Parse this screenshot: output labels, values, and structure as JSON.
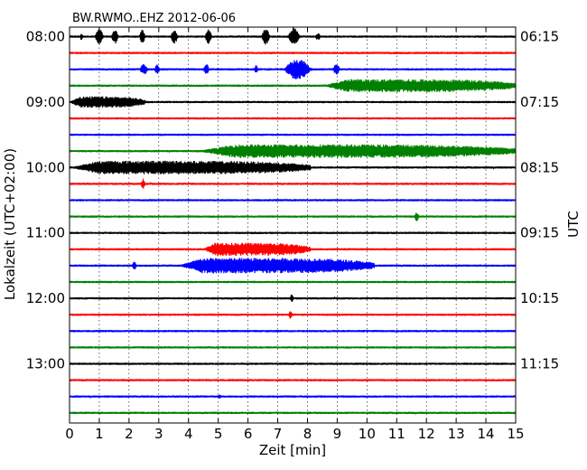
{
  "chart_data": {
    "type": "line",
    "title": "BW.RWMO..EHZ 2012-06-06",
    "xlabel": "Zeit  [min]",
    "ylabel_left": "Lokalzeit (UTC+02:00)",
    "ylabel_right": "UTC",
    "xlim": [
      0,
      15
    ],
    "xticks": [
      0,
      1,
      2,
      3,
      4,
      5,
      6,
      7,
      8,
      9,
      10,
      11,
      12,
      13,
      14,
      15
    ],
    "x_grid": "dotted",
    "trace_interval_min": 15,
    "trace_count": 24,
    "colors": [
      "#000000",
      "#ff0000",
      "#0000ff",
      "#008000"
    ],
    "left_ticks": [
      {
        "trace": 0,
        "label": "08:00"
      },
      {
        "trace": 4,
        "label": "09:00"
      },
      {
        "trace": 8,
        "label": "10:00"
      },
      {
        "trace": 12,
        "label": "11:00"
      },
      {
        "trace": 16,
        "label": "12:00"
      },
      {
        "trace": 20,
        "label": "13:00"
      }
    ],
    "right_ticks": [
      {
        "trace": 0,
        "label": "06:15"
      },
      {
        "trace": 4,
        "label": "07:15"
      },
      {
        "trace": 8,
        "label": "08:15"
      },
      {
        "trace": 12,
        "label": "09:15"
      },
      {
        "trace": 16,
        "label": "10:15"
      },
      {
        "trace": 20,
        "label": "11:15"
      }
    ],
    "events": [
      {
        "trace": 0,
        "start": 0.35,
        "end": 0.45,
        "amplitude": 0.22
      },
      {
        "trace": 0,
        "start": 0.85,
        "end": 1.15,
        "amplitude": 0.5
      },
      {
        "trace": 0,
        "start": 1.4,
        "end": 1.65,
        "amplitude": 0.45
      },
      {
        "trace": 0,
        "start": 2.35,
        "end": 2.55,
        "amplitude": 0.45
      },
      {
        "trace": 0,
        "start": 3.4,
        "end": 3.65,
        "amplitude": 0.45
      },
      {
        "trace": 0,
        "start": 4.55,
        "end": 4.8,
        "amplitude": 0.45
      },
      {
        "trace": 0,
        "start": 6.45,
        "end": 6.75,
        "amplitude": 0.5
      },
      {
        "trace": 0,
        "start": 7.35,
        "end": 7.75,
        "amplitude": 0.6
      },
      {
        "trace": 0,
        "start": 8.25,
        "end": 8.45,
        "amplitude": 0.25
      },
      {
        "trace": 2,
        "start": 2.35,
        "end": 2.65,
        "amplitude": 0.35
      },
      {
        "trace": 2,
        "start": 2.85,
        "end": 3.05,
        "amplitude": 0.3
      },
      {
        "trace": 2,
        "start": 4.5,
        "end": 4.7,
        "amplitude": 0.35
      },
      {
        "trace": 2,
        "start": 6.2,
        "end": 6.35,
        "amplitude": 0.25
      },
      {
        "trace": 2,
        "start": 7.2,
        "end": 8.15,
        "amplitude": 0.65
      },
      {
        "trace": 2,
        "start": 8.85,
        "end": 9.1,
        "amplitude": 0.35
      },
      {
        "trace": 3,
        "start": 8.5,
        "end": 15.0,
        "amplitude": 0.4
      },
      {
        "trace": 4,
        "start": 0.0,
        "end": 2.55,
        "amplitude": 0.35
      },
      {
        "trace": 7,
        "start": 4.25,
        "end": 15.0,
        "amplitude": 0.42
      },
      {
        "trace": 8,
        "start": 0.0,
        "end": 8.1,
        "amplitude": 0.42
      },
      {
        "trace": 9,
        "start": 2.4,
        "end": 2.55,
        "amplitude": 0.35
      },
      {
        "trace": 11,
        "start": 11.6,
        "end": 11.75,
        "amplitude": 0.3
      },
      {
        "trace": 13,
        "start": 4.45,
        "end": 8.1,
        "amplitude": 0.4
      },
      {
        "trace": 14,
        "start": 2.1,
        "end": 2.25,
        "amplitude": 0.3
      },
      {
        "trace": 14,
        "start": 3.65,
        "end": 10.25,
        "amplitude": 0.48
      },
      {
        "trace": 16,
        "start": 7.4,
        "end": 7.55,
        "amplitude": 0.25
      },
      {
        "trace": 17,
        "start": 7.35,
        "end": 7.5,
        "amplitude": 0.25
      },
      {
        "trace": 22,
        "start": 5.0,
        "end": 5.1,
        "amplitude": 0.18
      }
    ]
  }
}
